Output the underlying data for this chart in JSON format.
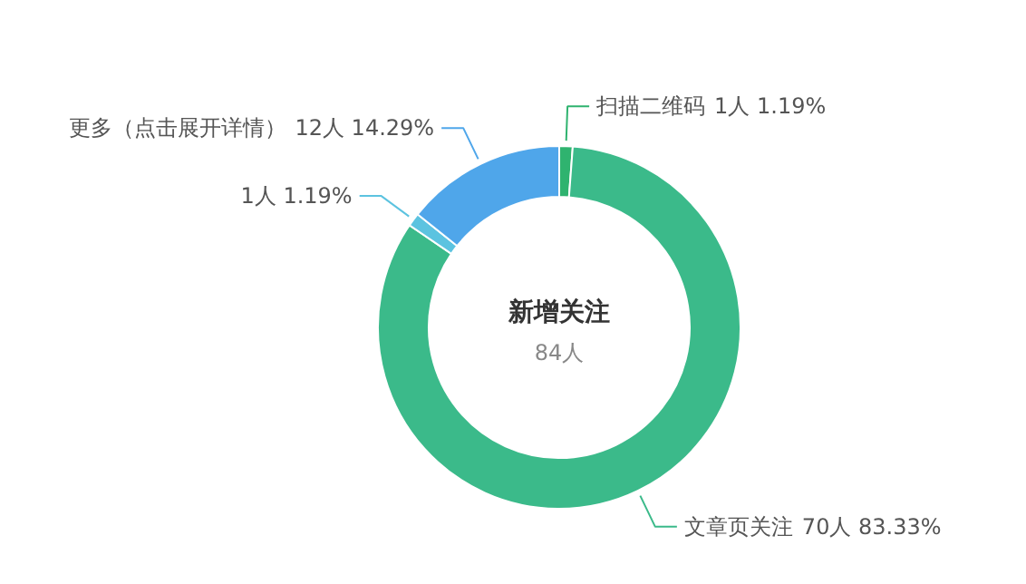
{
  "chart_data": {
    "type": "donut",
    "title": "新增关注",
    "subtitle": "84人",
    "categories": [
      "扫描二维码",
      "文章页关注",
      null,
      "更多（点击展开详情）"
    ],
    "values": [
      1,
      70,
      1,
      12
    ],
    "colors": [
      "#2fb36f",
      "#3bba8a",
      "#5cc3e0",
      "#4fa6ea"
    ],
    "value_labels": [
      "1人 1.19%",
      "70人 83.33%",
      "1人 1.19%",
      "12人 14.29%"
    ]
  }
}
